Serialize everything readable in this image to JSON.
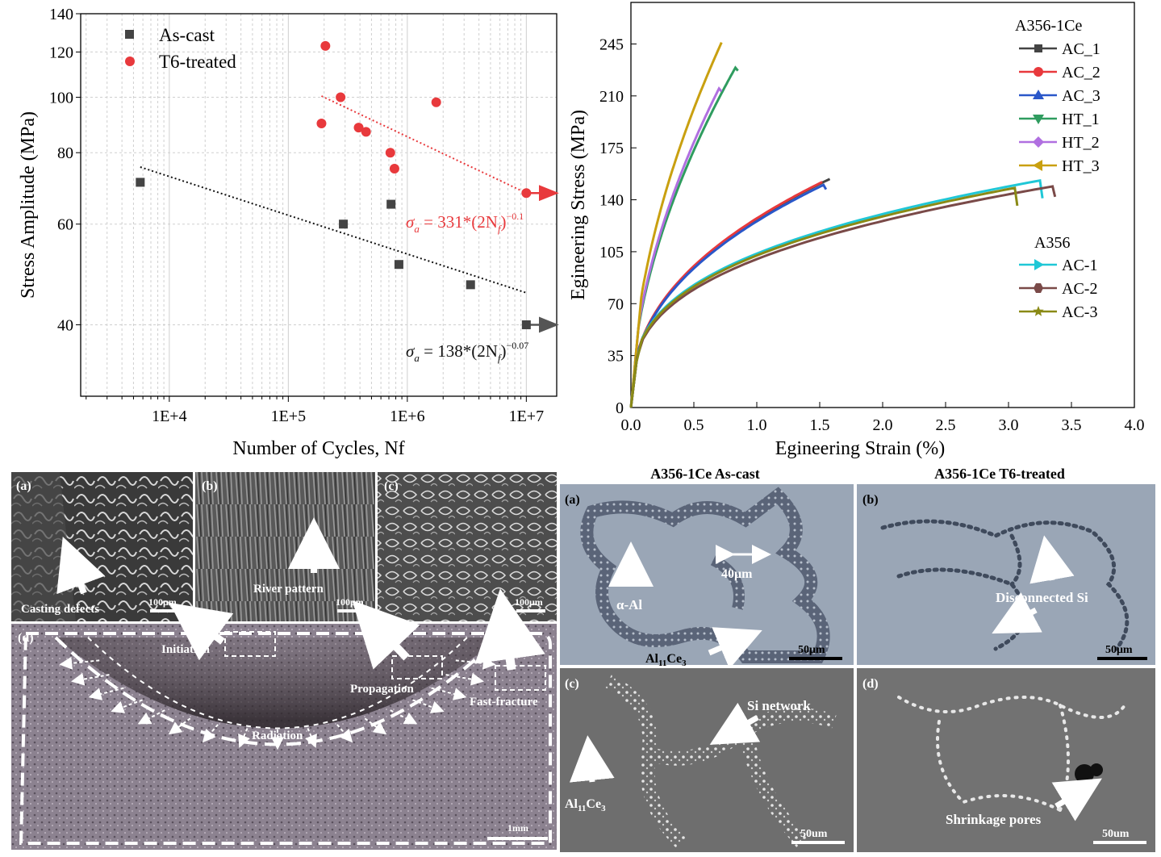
{
  "chart_data": [
    {
      "type": "scatter",
      "xlabel": "Number of Cycles, Nf",
      "ylabel": "Stress Amplitude (MPa)",
      "x_scale": "log",
      "y_scale": "log",
      "xlim": [
        1800,
        18000000
      ],
      "ylim": [
        30,
        140
      ],
      "xticks": [
        10000,
        100000,
        1000000,
        10000000
      ],
      "xtick_labels": [
        "1E+4",
        "1E+5",
        "1E+6",
        "1E+7"
      ],
      "yticks": [
        40,
        60,
        80,
        100,
        120,
        140
      ],
      "ytick_labels": [
        "40",
        "60",
        "80",
        "100",
        "120",
        "140"
      ],
      "legend_position": "top-left",
      "series": [
        {
          "name": "As-cast",
          "color": "#444444",
          "marker": "square",
          "x": [
            5700,
            290000,
            730000,
            850000,
            3400000,
            10000000
          ],
          "y": [
            71,
            60,
            65,
            51,
            47,
            40
          ]
        },
        {
          "name": "T6-treated",
          "color": "#e8393c",
          "marker": "circle",
          "x": [
            190000,
            205000,
            275000,
            390000,
            450000,
            720000,
            780000,
            1750000,
            10000000
          ],
          "y": [
            90,
            123,
            100,
            88.5,
            87,
            80,
            75,
            98,
            68
          ]
        }
      ],
      "fit_lines": [
        {
          "series": "As-cast",
          "color": "#111111",
          "x": [
            5700,
            10000000
          ],
          "y": [
            75.5,
            45.5
          ]
        },
        {
          "series": "T6-treated",
          "color": "#e8393c",
          "x": [
            190000,
            10000000
          ],
          "y": [
            100.5,
            68
          ]
        }
      ],
      "runout_arrows": [
        {
          "series": "As-cast",
          "x": 10000000,
          "y": 40
        },
        {
          "series": "T6-treated",
          "x": 10000000,
          "y": 68
        }
      ],
      "annotations": {
        "t6": {
          "pre": "σ",
          "sub1": "a",
          "mid": " = 331*(2N",
          "sub2": "f",
          "close": ")",
          "exp": "−0.1"
        },
        "ascast": {
          "pre": "σ",
          "sub1": "a",
          "mid": " = 138*(2N",
          "sub2": "f",
          "close": ")",
          "exp": "−0.07"
        }
      }
    },
    {
      "type": "line",
      "xlabel": "Egineering Strain (%)",
      "ylabel": "Egineering Stress (MPa)",
      "xlim": [
        0,
        4.0
      ],
      "ylim": [
        0,
        273
      ],
      "xticks": [
        0,
        0.5,
        1.0,
        1.5,
        2.0,
        2.5,
        3.0,
        3.5,
        4.0
      ],
      "xtick_labels": [
        "0.0",
        "0.5",
        "1.0",
        "1.5",
        "2.0",
        "2.5",
        "3.0",
        "3.5",
        "4.0"
      ],
      "yticks": [
        0,
        35,
        70,
        105,
        140,
        175,
        210,
        245
      ],
      "ytick_labels": [
        "0",
        "35",
        "70",
        "105",
        "140",
        "175",
        "210",
        "245"
      ],
      "legend_groups": [
        {
          "title": "A356-1Ce",
          "items": [
            "AC_1",
            "AC_2",
            "AC_3",
            "HT_1",
            "HT_2",
            "HT_3"
          ]
        },
        {
          "title": "A356",
          "items": [
            "AC-1",
            "AC-2",
            "AC-3"
          ]
        }
      ],
      "series": [
        {
          "name": "AC_1",
          "color": "#444444",
          "marker": "square",
          "family": "ac",
          "fracture": 1.58,
          "stress_at_fracture": 154,
          "drop": 0
        },
        {
          "name": "AC_2",
          "color": "#e8393c",
          "marker": "circle",
          "family": "ac",
          "fracture": 1.52,
          "stress_at_fracture": 152,
          "drop": 0
        },
        {
          "name": "AC_3",
          "color": "#2a57c9",
          "marker": "triangle-up",
          "family": "ac",
          "fracture": 1.53,
          "stress_at_fracture": 150,
          "drop": 3
        },
        {
          "name": "HT_1",
          "color": "#2f9c5f",
          "marker": "triangle-down",
          "family": "ht",
          "fracture": 0.83,
          "stress_at_fracture": 229,
          "drop": 2
        },
        {
          "name": "HT_2",
          "color": "#b06fe0",
          "marker": "diamond",
          "family": "ht",
          "fracture": 0.7,
          "stress_at_fracture": 215,
          "drop": 2
        },
        {
          "name": "HT_3",
          "color": "#c9a010",
          "marker": "triangle-left",
          "family": "ht",
          "fracture": 0.72,
          "stress_at_fracture": 246,
          "drop": 0
        },
        {
          "name": "AC-1",
          "color": "#1fc7d6",
          "marker": "triangle-right",
          "family": "base",
          "fracture": 3.25,
          "stress_at_fracture": 153,
          "drop": 12
        },
        {
          "name": "AC-2",
          "color": "#7a4a48",
          "marker": "hexagon",
          "family": "base",
          "fracture": 3.35,
          "stress_at_fracture": 149,
          "drop": 7
        },
        {
          "name": "AC-3",
          "color": "#8a8a16",
          "marker": "star",
          "family": "base",
          "fracture": 3.05,
          "stress_at_fracture": 148,
          "drop": 12
        }
      ]
    }
  ],
  "fractography": {
    "a": {
      "label": "(a)",
      "caption": "Casting defects",
      "scale": "100μm"
    },
    "b": {
      "label": "(b)",
      "caption": "River pattern",
      "scale": "100μm"
    },
    "c": {
      "label": "(c)",
      "caption": "",
      "scale": "100μm"
    },
    "d": {
      "label": "(d)",
      "initiation": "Initiation",
      "propagation": "Propagation",
      "fast": "Fast-fracture",
      "radiation": "Radiation",
      "scale": "1mm"
    }
  },
  "microstructure": {
    "col_left": "A356-1Ce As-cast",
    "col_right": "A356-1Ce T6-treated",
    "a": {
      "label": "(a)",
      "dim": "40μm",
      "alpha": "α-Al",
      "phase": "Al",
      "phase_sub1": "11",
      "phase_mid": "Ce",
      "phase_sub2": "3",
      "scale": "50μm"
    },
    "b": {
      "label": "(b)",
      "caption": "Disconnected Si",
      "scale": "50μm"
    },
    "c": {
      "label": "(c)",
      "caption": "Si network",
      "phase": "Al",
      "phase_sub1": "11",
      "phase_mid": "Ce",
      "phase_sub2": "3",
      "scale": "50um"
    },
    "d": {
      "label": "(d)",
      "caption": "Shrinkage pores",
      "scale": "50um"
    }
  }
}
